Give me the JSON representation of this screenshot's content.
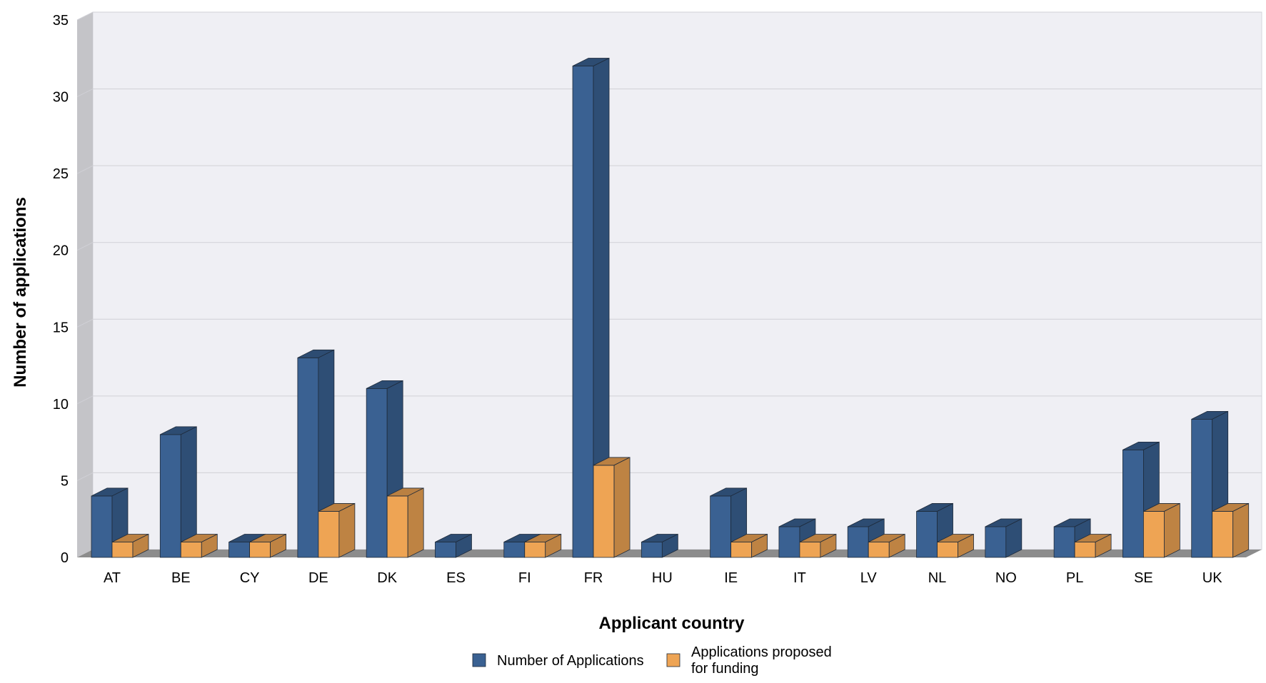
{
  "chart_data": {
    "type": "bar",
    "title": "",
    "xlabel": "Applicant country",
    "ylabel": "Number of applications",
    "categories": [
      "AT",
      "BE",
      "CY",
      "DE",
      "DK",
      "ES",
      "FI",
      "FR",
      "HU",
      "IE",
      "IT",
      "LV",
      "NL",
      "NO",
      "PL",
      "SE",
      "UK"
    ],
    "series": [
      {
        "name": "Number of Applications",
        "color": "#3a6192",
        "values": [
          4,
          8,
          1,
          13,
          11,
          1,
          1,
          32,
          1,
          4,
          2,
          2,
          3,
          2,
          2,
          7,
          9
        ]
      },
      {
        "name": "Applications proposed\nfor funding",
        "color": "#eea454",
        "values": [
          1,
          1,
          1,
          3,
          4,
          0,
          1,
          6,
          0,
          1,
          1,
          1,
          1,
          0,
          1,
          3,
          3
        ]
      }
    ],
    "ylim": [
      0,
      35
    ],
    "yticks": [
      0,
      5,
      10,
      15,
      20,
      25,
      30,
      35
    ],
    "grid": true,
    "legend": "bottom-center",
    "style": "3d-column"
  }
}
